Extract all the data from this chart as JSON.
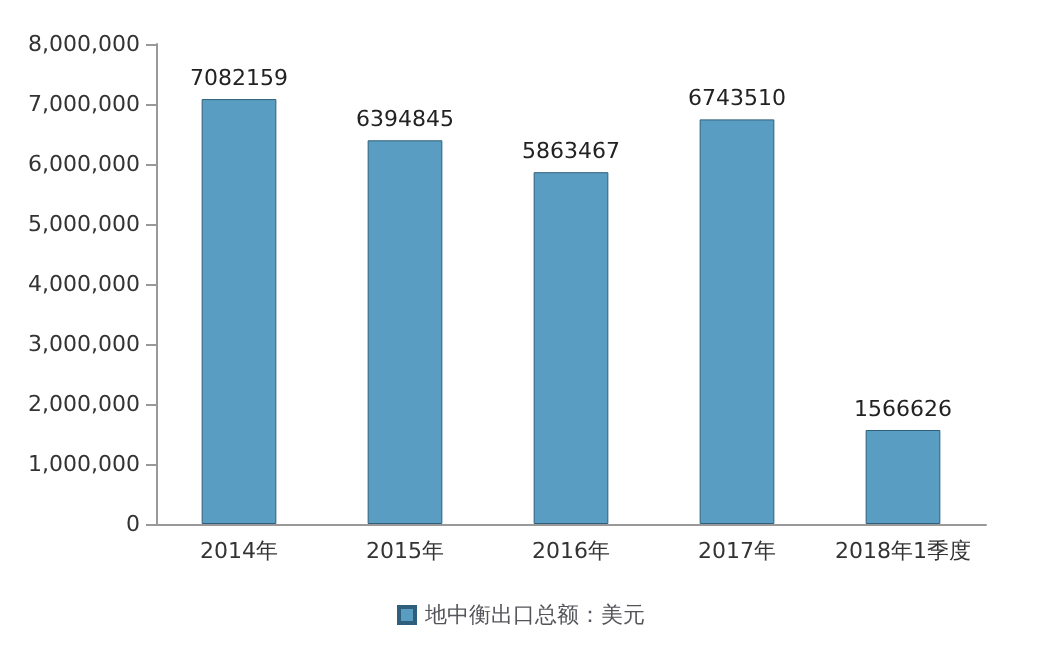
{
  "chart_data": {
    "type": "bar",
    "categories": [
      "2014年",
      "2015年",
      "2016年",
      "2017年",
      "2018年1季度"
    ],
    "series": [
      {
        "name": "地中衡出口总额：美元",
        "color": "#5a9dc2",
        "values": [
          7082159,
          6394845,
          5863467,
          6743510,
          1566626
        ]
      }
    ],
    "ylim": [
      0,
      8000000
    ],
    "yticks": [
      0,
      {
        "value": 1000000,
        "label": "1,000,000"
      },
      {
        "value": 2000000,
        "label": "2,000,000"
      },
      {
        "value": 3000000,
        "label": "3,000,000"
      },
      {
        "value": 4000000,
        "label": "4,000,000"
      },
      {
        "value": 5000000,
        "label": "5,000,000"
      },
      {
        "value": 6000000,
        "label": "6,000,000"
      },
      {
        "value": 7000000,
        "label": "7,000,000"
      },
      {
        "value": 8000000,
        "label": "8,000,000"
      }
    ],
    "data_labels": true,
    "grid": false,
    "legend": "bottom"
  }
}
